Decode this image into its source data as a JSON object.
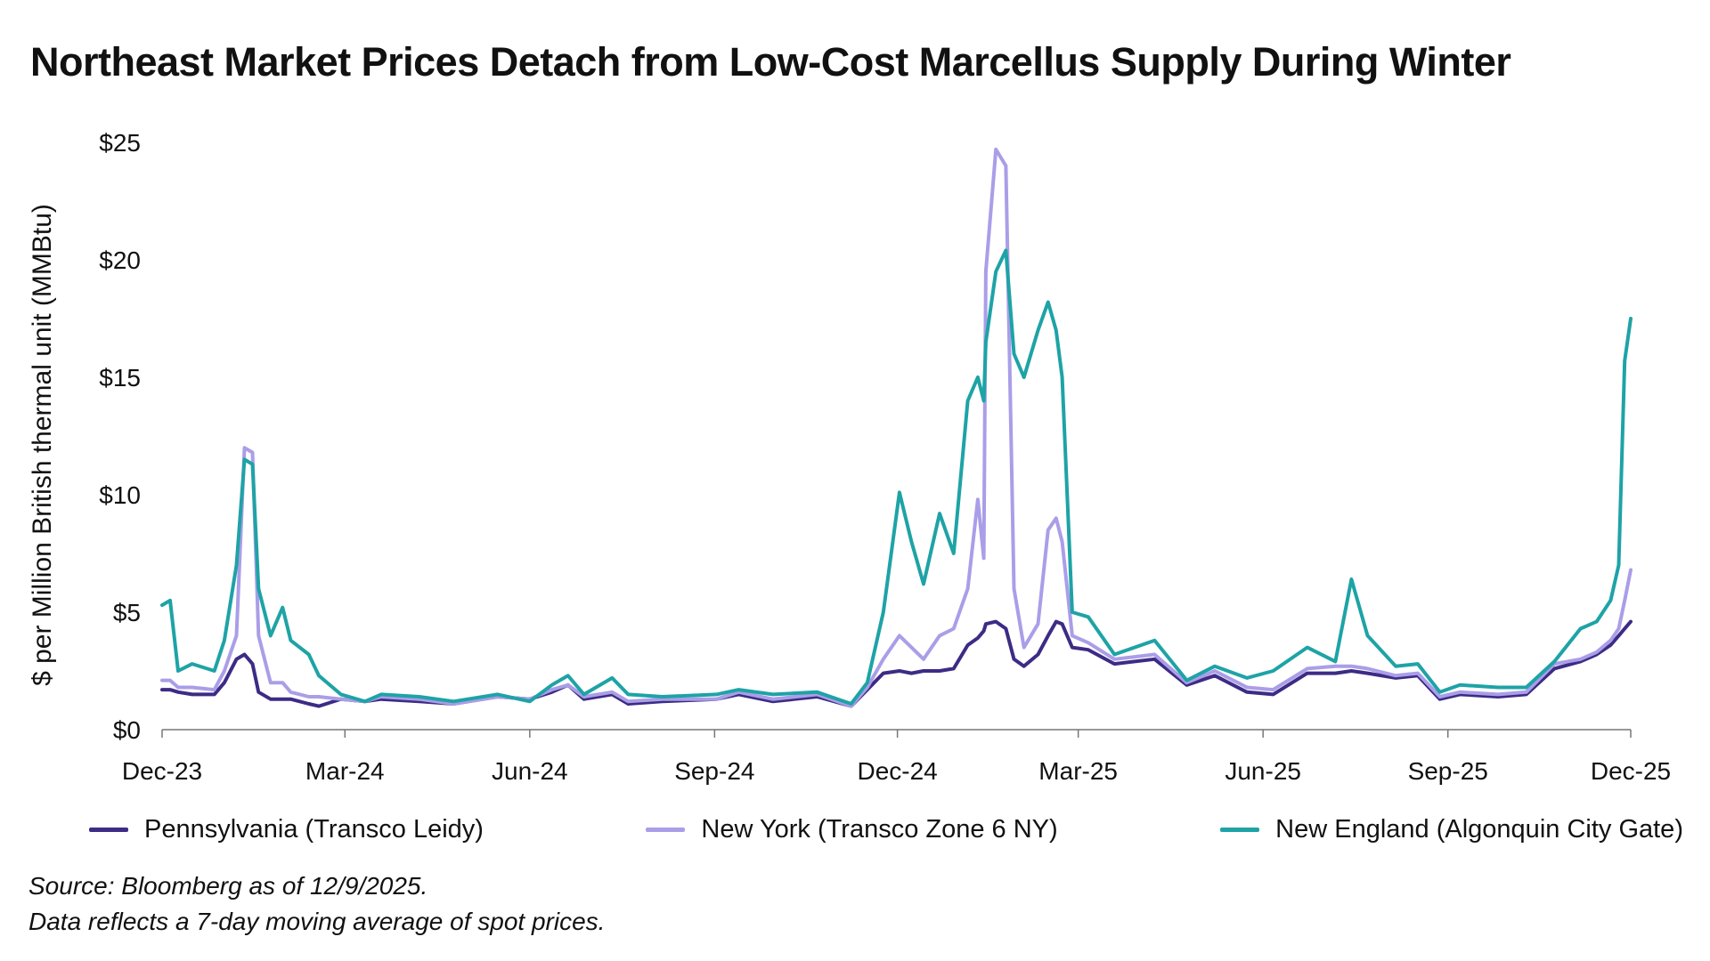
{
  "chart_data": {
    "type": "line",
    "title": "Northeast Market Prices Detach from Low-Cost Marcellus Supply During Winter",
    "ylabel": "$ per Million British thermal unit (MMBtu)",
    "xlabel": "",
    "ylim": [
      0,
      25
    ],
    "xlim": [
      "2023-12-01",
      "2025-12-01"
    ],
    "yticks": [
      0,
      5,
      10,
      15,
      20,
      25
    ],
    "ytick_labels": [
      "$0",
      "$5",
      "$10",
      "$15",
      "$20",
      "$25"
    ],
    "xticks": [
      "2023-12-01",
      "2024-03-01",
      "2024-06-01",
      "2024-09-01",
      "2024-12-01",
      "2025-03-01",
      "2025-06-01",
      "2025-09-01",
      "2025-12-01"
    ],
    "xtick_labels": [
      "Dec-23",
      "Mar-24",
      "Jun-24",
      "Sep-24",
      "Dec-24",
      "Mar-25",
      "Jun-25",
      "Sep-25",
      "Dec-25"
    ],
    "grid": false,
    "legend_position": "bottom",
    "x": [
      "2023-12-01",
      "2023-12-05",
      "2023-12-09",
      "2023-12-16",
      "2023-12-27",
      "2024-01-01",
      "2024-01-07",
      "2024-01-11",
      "2024-01-15",
      "2024-01-18",
      "2024-01-24",
      "2024-01-30",
      "2024-02-03",
      "2024-02-12",
      "2024-02-17",
      "2024-02-28",
      "2024-03-11",
      "2024-03-19",
      "2024-04-07",
      "2024-04-24",
      "2024-05-16",
      "2024-06-01",
      "2024-06-12",
      "2024-06-20",
      "2024-06-28",
      "2024-07-12",
      "2024-07-20",
      "2024-08-06",
      "2024-09-02",
      "2024-09-13",
      "2024-09-30",
      "2024-10-22",
      "2024-11-08",
      "2024-11-16",
      "2024-11-24",
      "2024-12-02",
      "2024-12-08",
      "2024-12-14",
      "2024-12-22",
      "2024-12-29",
      "2025-01-05",
      "2025-01-10",
      "2025-01-13",
      "2025-01-14",
      "2025-01-19",
      "2025-01-24",
      "2025-01-28",
      "2025-02-02",
      "2025-02-09",
      "2025-02-14",
      "2025-02-18",
      "2025-02-21",
      "2025-02-26",
      "2025-03-06",
      "2025-03-19",
      "2025-04-08",
      "2025-04-24",
      "2025-05-08",
      "2025-05-24",
      "2025-06-06",
      "2025-06-23",
      "2025-07-07",
      "2025-07-15",
      "2025-07-23",
      "2025-08-06",
      "2025-08-17",
      "2025-08-28",
      "2025-09-07",
      "2025-09-26",
      "2025-10-10",
      "2025-10-24",
      "2025-11-06",
      "2025-11-14",
      "2025-11-21",
      "2025-11-25",
      "2025-11-28",
      "2025-12-01"
    ],
    "series": [
      {
        "name": "Pennsylvania (Transco Leidy)",
        "color": "#3d2b85",
        "values": [
          1.7,
          1.7,
          1.6,
          1.5,
          1.5,
          2.0,
          3.0,
          3.2,
          2.8,
          1.6,
          1.3,
          1.3,
          1.3,
          1.1,
          1.0,
          1.3,
          1.2,
          1.3,
          1.2,
          1.1,
          1.4,
          1.3,
          1.6,
          1.9,
          1.3,
          1.5,
          1.1,
          1.2,
          1.3,
          1.5,
          1.2,
          1.4,
          1.0,
          1.7,
          2.4,
          2.5,
          2.4,
          2.5,
          2.5,
          2.6,
          3.6,
          3.9,
          4.2,
          4.5,
          4.6,
          4.3,
          3.0,
          2.7,
          3.2,
          4.0,
          4.6,
          4.5,
          3.5,
          3.4,
          2.8,
          3.0,
          1.9,
          2.3,
          1.6,
          1.5,
          2.4,
          2.4,
          2.5,
          2.4,
          2.2,
          2.3,
          1.3,
          1.5,
          1.4,
          1.5,
          2.6,
          2.9,
          3.2,
          3.6,
          4.0,
          4.3,
          4.6
        ]
      },
      {
        "name": "New York (Transco Zone 6 NY)",
        "color": "#aa9ee8",
        "values": [
          2.1,
          2.1,
          1.8,
          1.8,
          1.7,
          2.5,
          4.0,
          12.0,
          11.8,
          4.0,
          2.0,
          2.0,
          1.6,
          1.4,
          1.4,
          1.3,
          1.2,
          1.4,
          1.3,
          1.1,
          1.4,
          1.3,
          1.7,
          1.9,
          1.4,
          1.6,
          1.2,
          1.3,
          1.3,
          1.6,
          1.3,
          1.5,
          1.0,
          1.8,
          3.0,
          4.0,
          3.5,
          3.0,
          4.0,
          4.3,
          6.0,
          9.8,
          7.3,
          19.5,
          24.7,
          24.0,
          6.0,
          3.5,
          4.5,
          8.5,
          9.0,
          8.0,
          4.0,
          3.7,
          3.0,
          3.2,
          2.0,
          2.5,
          1.8,
          1.7,
          2.6,
          2.7,
          2.7,
          2.6,
          2.3,
          2.4,
          1.4,
          1.6,
          1.5,
          1.6,
          2.8,
          3.0,
          3.3,
          3.8,
          4.3,
          5.5,
          6.8
        ]
      },
      {
        "name": "New England (Algonquin City Gate)",
        "color": "#1ea3a6",
        "values": [
          5.3,
          5.5,
          2.5,
          2.8,
          2.5,
          3.8,
          7.0,
          11.5,
          11.3,
          6.0,
          4.0,
          5.2,
          3.8,
          3.2,
          2.3,
          1.5,
          1.2,
          1.5,
          1.4,
          1.2,
          1.5,
          1.2,
          1.9,
          2.3,
          1.5,
          2.2,
          1.5,
          1.4,
          1.5,
          1.7,
          1.5,
          1.6,
          1.1,
          2.0,
          5.0,
          10.1,
          8.0,
          6.2,
          9.2,
          7.5,
          14.0,
          15.0,
          14.0,
          16.5,
          19.5,
          20.4,
          16.0,
          15.0,
          17.0,
          18.2,
          17.0,
          15.0,
          5.0,
          4.8,
          3.2,
          3.8,
          2.1,
          2.7,
          2.2,
          2.5,
          3.5,
          2.9,
          6.4,
          4.0,
          2.7,
          2.8,
          1.6,
          1.9,
          1.8,
          1.8,
          2.9,
          4.3,
          4.6,
          5.5,
          7.0,
          15.7,
          17.5
        ]
      }
    ],
    "notes": [
      "Source: Bloomberg as of 12/9/2025.",
      "Data reflects a 7-day moving average of spot prices."
    ]
  }
}
